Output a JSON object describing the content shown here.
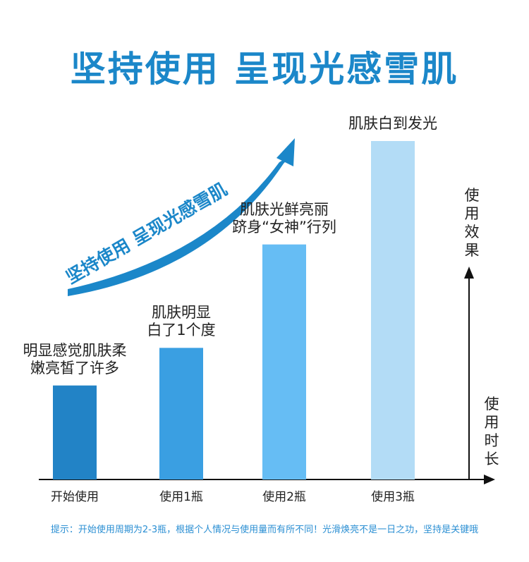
{
  "chart_data": {
    "type": "bar",
    "title": "坚持使用 呈现光感雪肌",
    "banner": "坚持使用 呈现光感雪肌",
    "ylabel": "使用效果",
    "xlabel": "使用时长",
    "categories": [
      "开始使用",
      "使用1瓶",
      "使用2瓶",
      "使用3瓶"
    ],
    "values": [
      1.0,
      1.4,
      2.5,
      3.6
    ],
    "ylim": [
      0,
      4.2
    ],
    "bar_colors": [
      "#2283c6",
      "#3a9fe2",
      "#66bdf4",
      "#b3dcf6"
    ],
    "annotations": [
      "明显感觉肌肤柔\n嫩亮皙了许多",
      "肌肤明显\n白了1个度",
      "肌肤光鲜亮丽\n跻身“女神”行列",
      "肌肤白到发光"
    ],
    "grid": false
  },
  "note": "提示：开始使用周期为2-3瓶，根据个人情况与使用量而有所不同！光滑焕亮不是一日之功，坚持是关键哦",
  "colors": {
    "accent": "#1b87c9",
    "arrow": "#1b87c9",
    "axis": "#111111"
  }
}
